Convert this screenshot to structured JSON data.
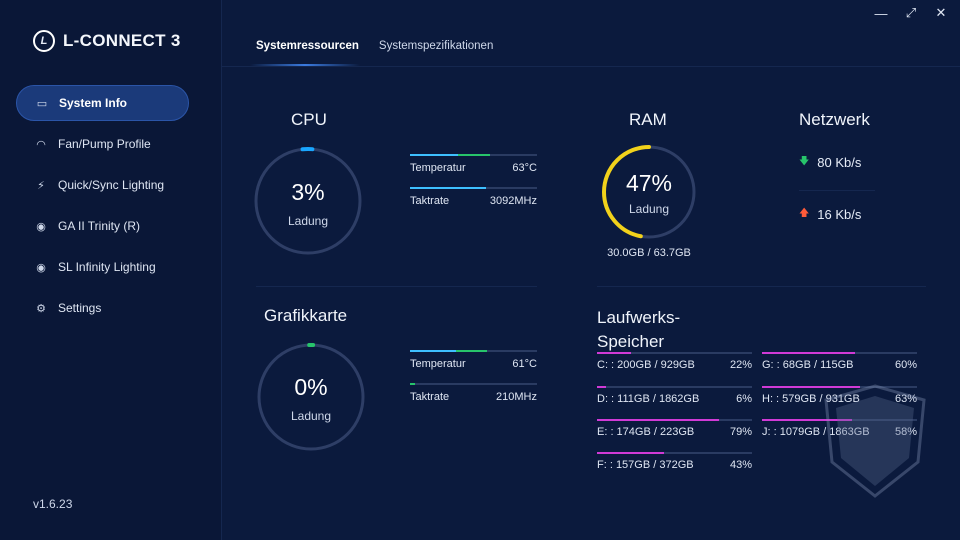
{
  "app": {
    "title": "L-CONNECT 3",
    "logo_letter": "L",
    "version": "v1.6.23"
  },
  "window_controls": {
    "minimize": "—",
    "maximize": "⤢",
    "close": "✕"
  },
  "sidebar": {
    "items": [
      {
        "label": "System Info",
        "icon": "monitor-icon",
        "glyph": "▭",
        "active": true
      },
      {
        "label": "Fan/Pump Profile",
        "icon": "fan-curve-icon",
        "glyph": "◠"
      },
      {
        "label": "Quick/Sync Lighting",
        "icon": "lightning-icon",
        "glyph": "⚡"
      },
      {
        "label": "GA II Trinity (R)",
        "icon": "target-icon",
        "glyph": "◉"
      },
      {
        "label": "SL Infinity Lighting",
        "icon": "infinity-icon",
        "glyph": "◉"
      },
      {
        "label": "Settings",
        "icon": "gear-icon",
        "glyph": "⚙"
      }
    ]
  },
  "tabs": [
    {
      "label": "Systemressourcen",
      "active": true
    },
    {
      "label": "Systemspezifikationen",
      "active": false
    }
  ],
  "cpu": {
    "title": "CPU",
    "value": "3%",
    "label": "Ladung",
    "load_fraction": 0.03,
    "metrics": [
      {
        "name": "Temperatur",
        "value": "63°C",
        "fill_fraction": 0.63,
        "color": "#3ec0ff",
        "color2": "#27c46b"
      },
      {
        "name": "Taktrate",
        "value": "3092MHz",
        "fill_fraction": 0.6,
        "color": "#3ec0ff"
      }
    ]
  },
  "gpu": {
    "title": "Grafikkarte",
    "value": "0%",
    "label": "Ladung",
    "load_fraction": 0.005,
    "metrics": [
      {
        "name": "Temperatur",
        "value": "61°C",
        "fill_fraction": 0.61,
        "color": "#3ec0ff",
        "color2": "#27c46b"
      },
      {
        "name": "Taktrate",
        "value": "210MHz",
        "fill_fraction": 0.04,
        "color": "#27c46b"
      }
    ]
  },
  "ram": {
    "title": "RAM",
    "value": "47%",
    "label": "Ladung",
    "load_fraction": 0.47,
    "usage": "30.0GB / 63.7GB",
    "color": "#f2d21b"
  },
  "network": {
    "title": "Netzwerk",
    "download": "80 Kb/s",
    "upload": "16 Kb/s",
    "download_color": "#27c46b",
    "upload_color": "#ff5b3a"
  },
  "drives": {
    "title": "Laufwerks-Speicher",
    "title_line1": "Laufwerks-",
    "title_line2": "Speicher",
    "items": [
      {
        "label": "C: : 200GB / 929GB",
        "percent": "22%",
        "fraction": 0.22
      },
      {
        "label": "D: : 111GB / 1862GB",
        "percent": "6%",
        "fraction": 0.06
      },
      {
        "label": "E: : 174GB / 223GB",
        "percent": "79%",
        "fraction": 0.79
      },
      {
        "label": "F: : 157GB / 372GB",
        "percent": "43%",
        "fraction": 0.43
      },
      {
        "label": "G: : 68GB / 115GB",
        "percent": "60%",
        "fraction": 0.6
      },
      {
        "label": "H: : 579GB / 931GB",
        "percent": "63%",
        "fraction": 0.63
      },
      {
        "label": "J: : 1079GB / 1863GB",
        "percent": "58%",
        "fraction": 0.58
      }
    ]
  }
}
